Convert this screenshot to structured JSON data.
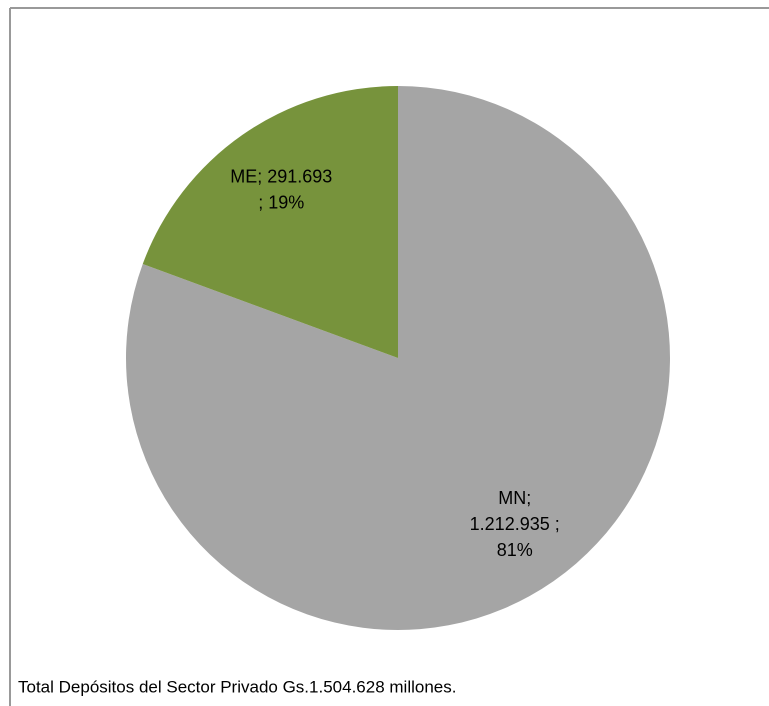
{
  "chart_data": {
    "type": "pie",
    "values": [
      1212935,
      291693
    ],
    "value_labels": [
      [
        "MN;",
        "1.212.935 ;",
        "81%"
      ],
      [
        "ME; 291.693",
        "; 19%"
      ]
    ],
    "colors": [
      "#a5a5a5",
      "#77933c"
    ],
    "note": "Total Depósitos del Sector Privado Gs.1.504.628 millones."
  }
}
